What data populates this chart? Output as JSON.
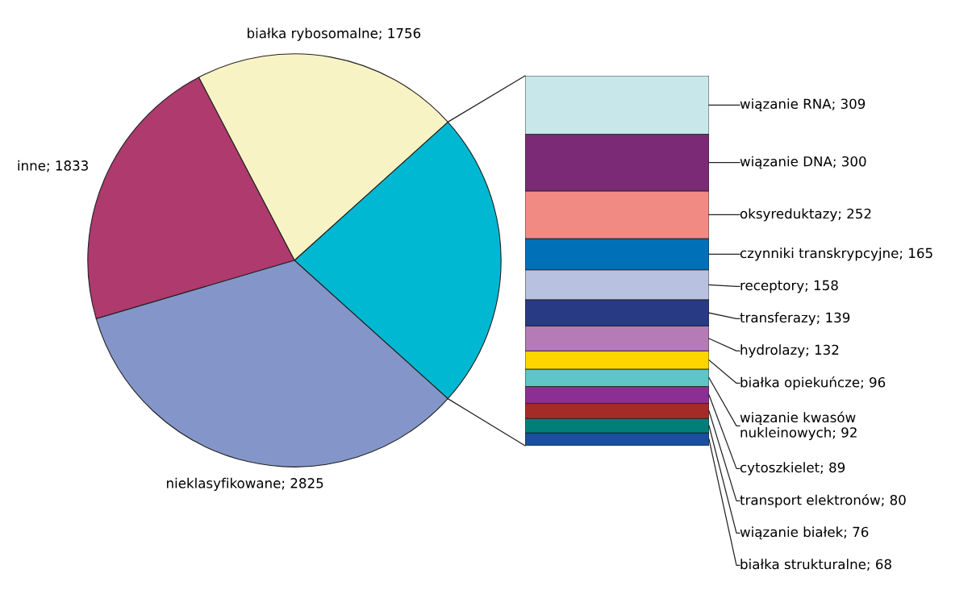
{
  "chart_data": [
    {
      "type": "pie",
      "categories": [
        null,
        null,
        null,
        null
      ],
      "values": [
        1956,
        1756,
        1833,
        2825
      ],
      "value_labels": [
        null,
        "białka rybosomalne; 1756",
        "inne; 1833",
        "nieklasyfikowane; 2825"
      ],
      "colors": [
        "#00b8d2",
        "#f8f3c4",
        "#ae3a6e",
        "#8496c9"
      ]
    },
    {
      "type": "bar",
      "stacked": true,
      "categories": [
        null
      ],
      "tick_labels": false,
      "series": [
        {
          "color": "#1a4fa0",
          "values": [
            68
          ],
          "value_labels": [
            "białka strukturalne; 68"
          ]
        },
        {
          "color": "#007f7a",
          "values": [
            76
          ],
          "value_labels": [
            "wiązanie białek; 76"
          ]
        },
        {
          "color": "#a32d26",
          "values": [
            80
          ],
          "value_labels": [
            "transport elektronów; 80"
          ]
        },
        {
          "color": "#8c2f95",
          "values": [
            89
          ],
          "value_labels": [
            "cytoszkielet; 89"
          ]
        },
        {
          "color": "#5fc5c6",
          "values": [
            92
          ],
          "value_labels": [
            "wiązanie kwasów\nnukleinowych; 92"
          ]
        },
        {
          "color": "#fdd600",
          "values": [
            96
          ],
          "value_labels": [
            "białka opiekuńcze; 96"
          ]
        },
        {
          "color": "#b57bb6",
          "values": [
            132
          ],
          "value_labels": [
            "hydrolazy; 132"
          ]
        },
        {
          "color": "#283a84",
          "values": [
            139
          ],
          "value_labels": [
            "transferazy; 139"
          ]
        },
        {
          "color": "#b9c1e0",
          "values": [
            158
          ],
          "value_labels": [
            "receptory; 158"
          ]
        },
        {
          "color": "#0070b8",
          "values": [
            165
          ],
          "value_labels": [
            "czynniki transkrypcyjne; 165"
          ]
        },
        {
          "color": "#f28a84",
          "values": [
            252
          ],
          "value_labels": [
            "oksyreduktazy; 252"
          ]
        },
        {
          "color": "#7b2a75",
          "values": [
            300
          ],
          "value_labels": [
            "wiązanie DNA; 300"
          ]
        },
        {
          "color": "#c8e7ea",
          "values": [
            309
          ],
          "value_labels": [
            "wiązanie RNA; 309"
          ]
        }
      ]
    }
  ]
}
